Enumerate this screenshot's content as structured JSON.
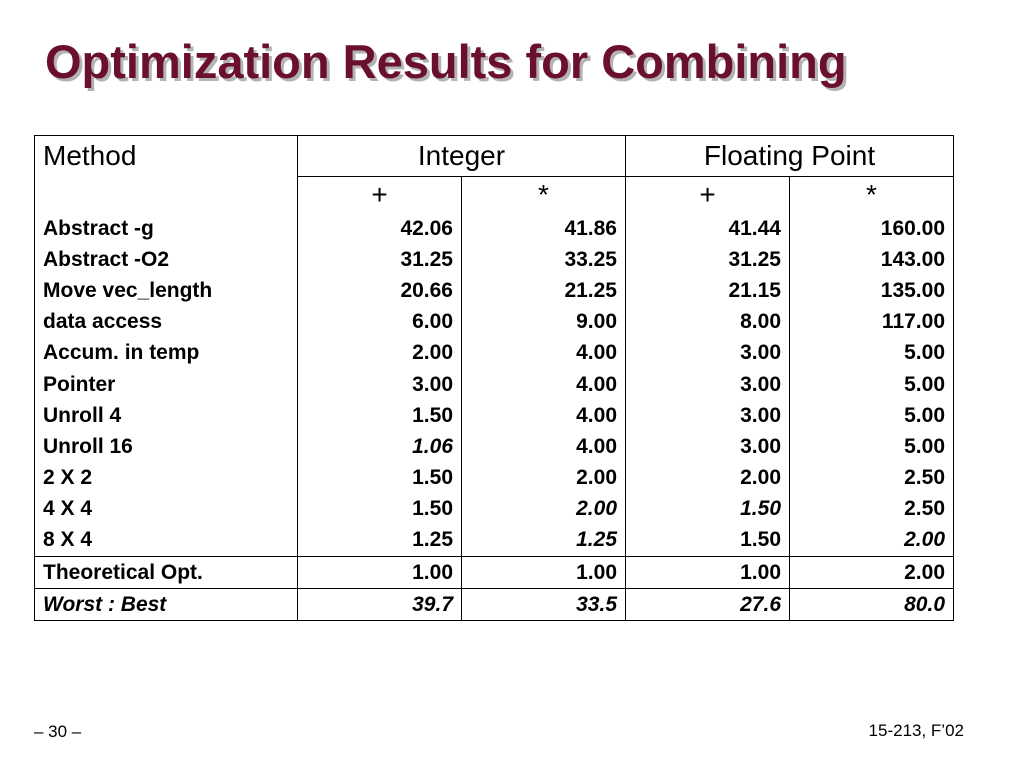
{
  "slide": {
    "title": "Optimization Results for Combining",
    "page_number": "– 30 –",
    "course": "15-213, F’02"
  },
  "table": {
    "method_header": "Method",
    "groups": [
      "Integer",
      "Floating Point"
    ],
    "ops": [
      "+",
      "*",
      "+",
      "*"
    ],
    "rows": [
      {
        "name": "Abstract -g",
        "values": [
          "42.06",
          "41.86",
          "41.44",
          "160.00"
        ],
        "italic": [
          false,
          false,
          false,
          false
        ]
      },
      {
        "name": "Abstract -O2",
        "values": [
          "31.25",
          "33.25",
          "31.25",
          "143.00"
        ],
        "italic": [
          false,
          false,
          false,
          false
        ]
      },
      {
        "name": "Move vec_length",
        "values": [
          "20.66",
          "21.25",
          "21.15",
          "135.00"
        ],
        "italic": [
          false,
          false,
          false,
          false
        ]
      },
      {
        "name": "data access",
        "values": [
          "6.00",
          "9.00",
          "8.00",
          "117.00"
        ],
        "italic": [
          false,
          false,
          false,
          false
        ]
      },
      {
        "name": "Accum. in temp",
        "values": [
          "2.00",
          "4.00",
          "3.00",
          "5.00"
        ],
        "italic": [
          false,
          false,
          false,
          false
        ]
      },
      {
        "name": "Pointer",
        "values": [
          "3.00",
          "4.00",
          "3.00",
          "5.00"
        ],
        "italic": [
          false,
          false,
          false,
          false
        ]
      },
      {
        "name": "Unroll 4",
        "values": [
          "1.50",
          "4.00",
          "3.00",
          "5.00"
        ],
        "italic": [
          false,
          false,
          false,
          false
        ]
      },
      {
        "name": "Unroll 16",
        "values": [
          "1.06",
          "4.00",
          "3.00",
          "5.00"
        ],
        "italic": [
          true,
          false,
          false,
          false
        ]
      },
      {
        "name": "2 X 2",
        "values": [
          "1.50",
          "2.00",
          "2.00",
          "2.50"
        ],
        "italic": [
          false,
          false,
          false,
          false
        ]
      },
      {
        "name": "4 X 4",
        "values": [
          "1.50",
          "2.00",
          "1.50",
          "2.50"
        ],
        "italic": [
          false,
          true,
          true,
          false
        ]
      },
      {
        "name": "8 X 4",
        "values": [
          "1.25",
          "1.25",
          "1.50",
          "2.00"
        ],
        "italic": [
          false,
          true,
          false,
          true
        ]
      }
    ],
    "theoretical": {
      "name": "Theoretical Opt.",
      "values": [
        "1.00",
        "1.00",
        "1.00",
        "2.00"
      ]
    },
    "worst_best": {
      "name": "Worst : Best",
      "values": [
        "39.7",
        "33.5",
        "27.6",
        "80.0"
      ]
    }
  }
}
